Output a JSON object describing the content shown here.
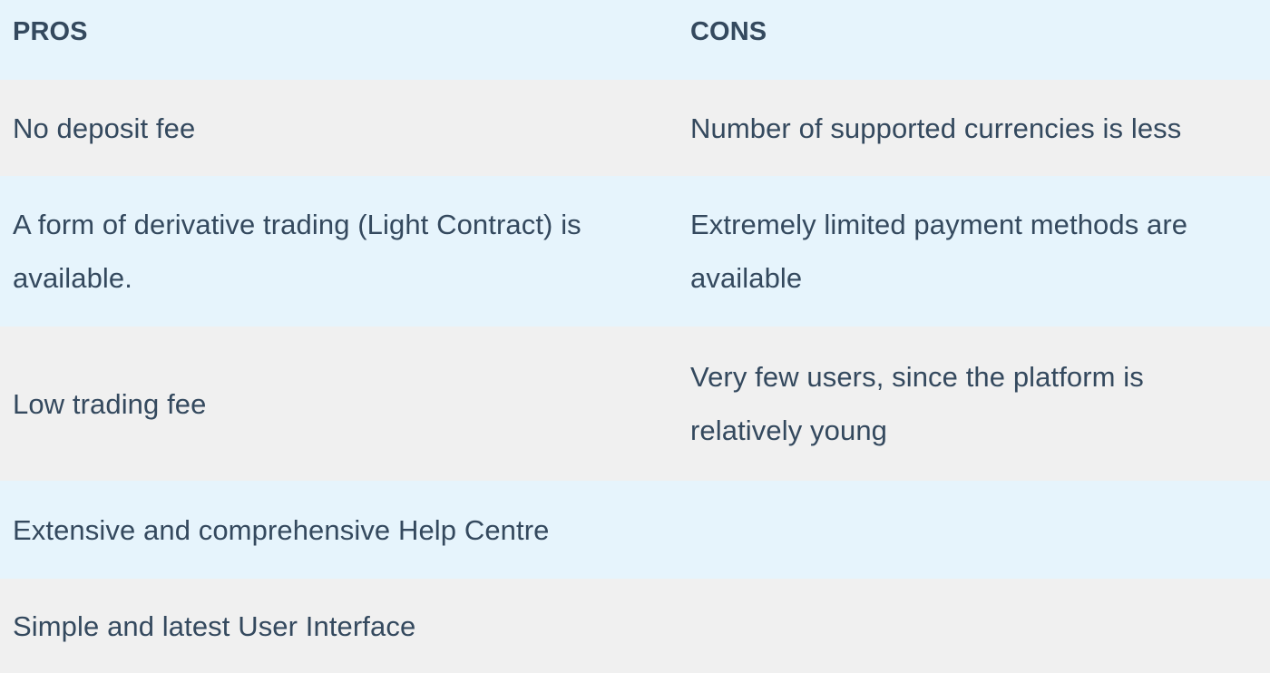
{
  "table": {
    "headers": [
      "PROS",
      "CONS"
    ],
    "rows": [
      {
        "pros": "No deposit fee",
        "cons": "Number of supported currencies is less"
      },
      {
        "pros": "A form of derivative trading (Light Contract) is available.",
        "cons": "Extremely limited payment methods are available"
      },
      {
        "pros": "Low trading fee",
        "cons": "Very few users, since the platform is relatively young"
      },
      {
        "pros": "Extensive and comprehensive Help Centre",
        "cons": ""
      },
      {
        "pros": "Simple and latest User Interface",
        "cons": ""
      }
    ]
  },
  "colors": {
    "header_bg": "#e6f4fc",
    "row_blue": "#e6f4fc",
    "row_grey": "#f0f0f0",
    "text": "#34495e"
  }
}
